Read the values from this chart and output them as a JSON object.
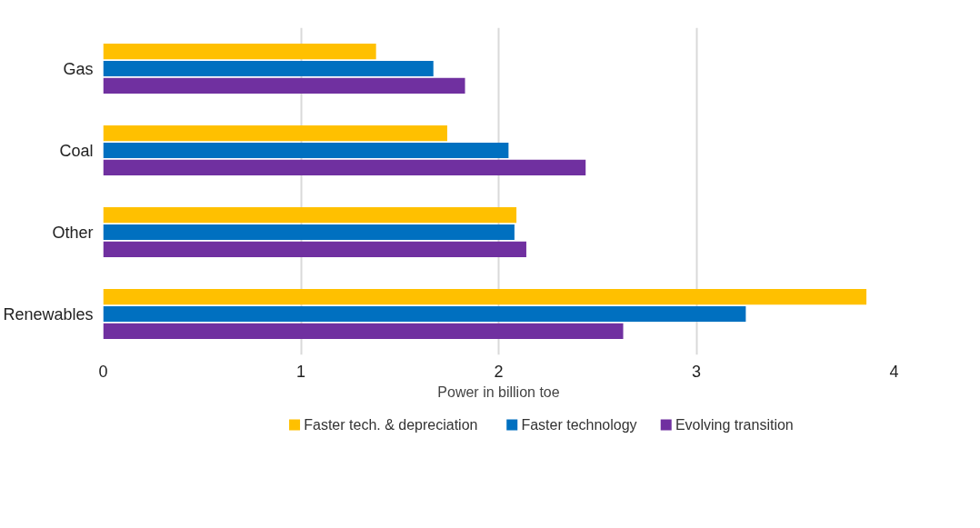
{
  "chart_data": {
    "type": "bar",
    "orientation": "horizontal",
    "xlabel": "Power in billion toe",
    "categories": [
      "Gas",
      "Coal",
      "Other",
      "Renewables"
    ],
    "series": [
      {
        "name": "Faster tech. & depreciation",
        "color": "#ffc000",
        "values": [
          1.38,
          1.74,
          2.09,
          3.86
        ]
      },
      {
        "name": "Faster technology",
        "color": "#0070c0",
        "values": [
          1.67,
          2.05,
          2.08,
          3.25
        ]
      },
      {
        "name": "Evolving transition",
        "color": "#7030a0",
        "values": [
          1.83,
          2.44,
          2.14,
          2.63
        ]
      }
    ],
    "xlim": [
      0,
      4
    ],
    "xticks": [
      0,
      1,
      2,
      3,
      4
    ],
    "grid": "x",
    "legend": "bottom"
  }
}
